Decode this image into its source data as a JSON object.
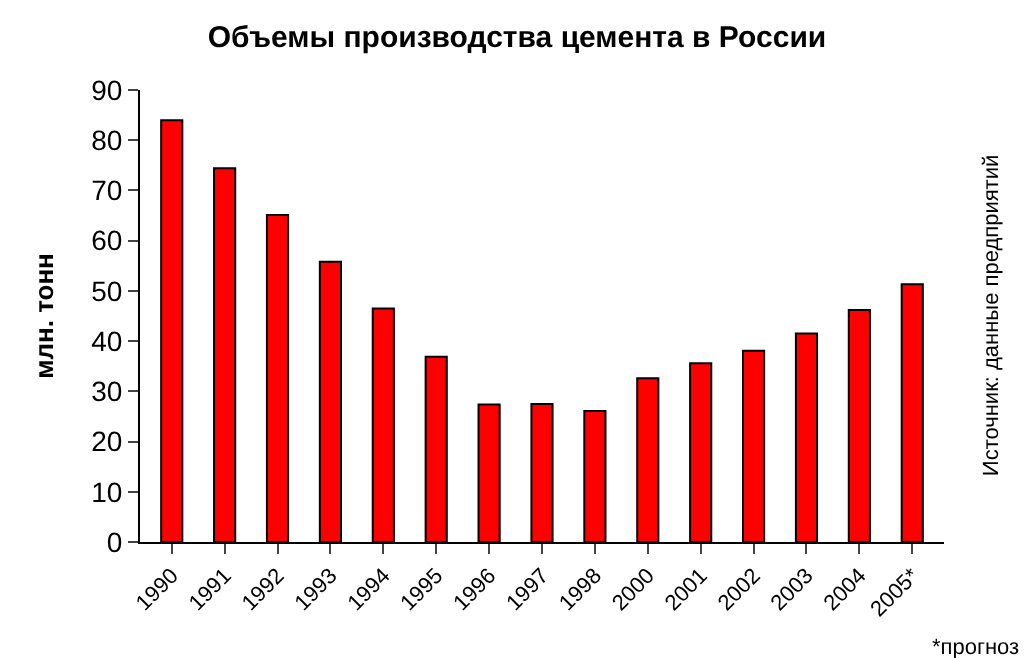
{
  "chart_data": {
    "type": "bar",
    "title": "Объемы производства цемента в России",
    "ylabel": "млн. тонн",
    "categories": [
      "1990",
      "1991",
      "1992",
      "1993",
      "1994",
      "1995",
      "1996",
      "1997",
      "1998",
      "2000",
      "2001",
      "2002",
      "2003",
      "2004",
      "2005*"
    ],
    "values": [
      84,
      74.4,
      65.1,
      55.8,
      46.5,
      36.9,
      27.4,
      27.5,
      26.1,
      32.6,
      35.6,
      38.1,
      41.5,
      46.2,
      51.3
    ],
    "color": "#ff0000",
    "ylim": [
      0,
      90
    ],
    "yticks": [
      0,
      10,
      20,
      30,
      40,
      50,
      60,
      70,
      80,
      90
    ],
    "annotations": [
      "Источник: данные предприятий",
      "*прогноз"
    ]
  }
}
